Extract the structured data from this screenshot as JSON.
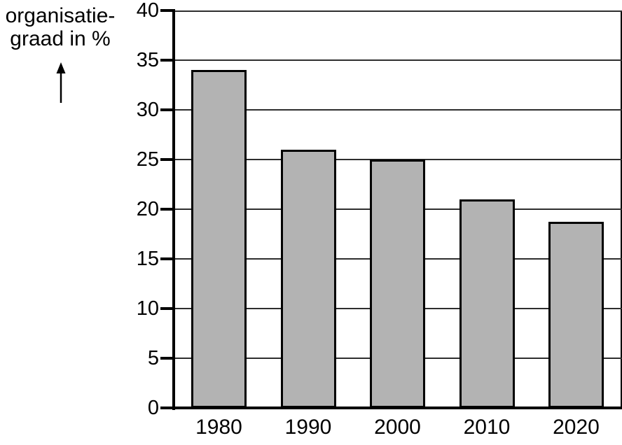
{
  "title": {
    "line1": "organisatie-",
    "line2": "graad in %"
  },
  "chart_data": {
    "type": "bar",
    "categories": [
      "1980",
      "1990",
      "2000",
      "2010",
      "2020"
    ],
    "values": [
      34,
      26,
      25,
      21,
      18.7
    ],
    "title": "",
    "xlabel": "",
    "ylabel": "organisatiegraad in %",
    "ylim": [
      0,
      40
    ],
    "ytick_step": 5,
    "yticks": [
      0,
      5,
      10,
      15,
      20,
      25,
      30,
      35,
      40
    ],
    "grid": true,
    "legend": false,
    "bar_color": "#b3b3b3",
    "bar_border_color": "#000000",
    "axis_color": "#000000",
    "gridline_color": "#2e2e2e",
    "background_color": "#ffffff"
  }
}
